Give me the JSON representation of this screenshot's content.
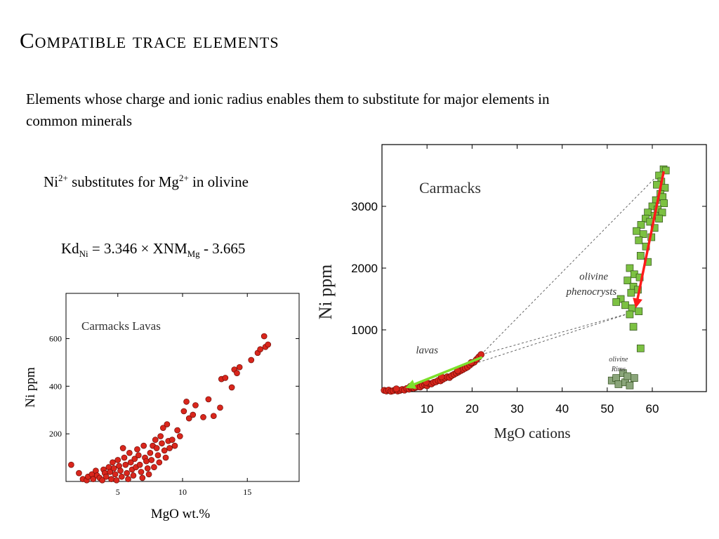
{
  "slide": {
    "title": "Compatible trace elements",
    "intro": "Elements whose charge and ionic radius enables them to substitute for major elements in common minerals",
    "substitution": {
      "ion1": "Ni",
      "ion1_charge": "2+",
      "middle": " substitutes for Mg",
      "ion2_charge": "2+",
      "tail": " in olivine"
    },
    "equation": {
      "lhs": "Kd",
      "lhs_sub": "Ni",
      "mid": " = 3.346 × XNM",
      "mid_sub": "Mg",
      "tail": " - 3.665"
    }
  },
  "chart_data": [
    {
      "type": "scatter",
      "title": "Carmacks Lavas",
      "xlabel": "MgO wt.%",
      "ylabel": "Ni ppm",
      "xlim": [
        1,
        19
      ],
      "ylim": [
        0,
        790
      ],
      "xticks": [
        5,
        10,
        15
      ],
      "yticks": [
        200,
        400,
        600
      ],
      "grid": false,
      "marker": "circle",
      "marker_color": "#d9261c",
      "series": [
        {
          "points": [
            [
              1.4,
              70
            ],
            [
              2.0,
              35
            ],
            [
              2.3,
              10
            ],
            [
              2.6,
              5
            ],
            [
              2.7,
              20
            ],
            [
              3.0,
              30
            ],
            [
              3.1,
              10
            ],
            [
              3.3,
              45
            ],
            [
              3.4,
              25
            ],
            [
              3.6,
              15
            ],
            [
              3.8,
              5
            ],
            [
              3.9,
              50
            ],
            [
              4.0,
              35
            ],
            [
              4.1,
              20
            ],
            [
              4.3,
              60
            ],
            [
              4.4,
              40
            ],
            [
              4.5,
              10
            ],
            [
              4.6,
              80
            ],
            [
              4.7,
              55
            ],
            [
              4.8,
              30
            ],
            [
              4.9,
              5
            ],
            [
              5.0,
              90
            ],
            [
              5.1,
              65
            ],
            [
              5.2,
              45
            ],
            [
              5.3,
              20
            ],
            [
              5.4,
              140
            ],
            [
              5.5,
              100
            ],
            [
              5.6,
              70
            ],
            [
              5.7,
              35
            ],
            [
              5.8,
              10
            ],
            [
              5.9,
              120
            ],
            [
              6.0,
              80
            ],
            [
              6.1,
              50
            ],
            [
              6.2,
              25
            ],
            [
              6.3,
              95
            ],
            [
              6.4,
              60
            ],
            [
              6.5,
              135
            ],
            [
              6.6,
              110
            ],
            [
              6.7,
              70
            ],
            [
              6.8,
              40
            ],
            [
              6.9,
              15
            ],
            [
              7.0,
              150
            ],
            [
              7.1,
              100
            ],
            [
              7.2,
              85
            ],
            [
              7.3,
              55
            ],
            [
              7.4,
              30
            ],
            [
              7.5,
              120
            ],
            [
              7.6,
              90
            ],
            [
              7.7,
              150
            ],
            [
              7.8,
              60
            ],
            [
              7.9,
              175
            ],
            [
              8.0,
              140
            ],
            [
              8.1,
              110
            ],
            [
              8.2,
              80
            ],
            [
              8.3,
              190
            ],
            [
              8.4,
              160
            ],
            [
              8.5,
              225
            ],
            [
              8.6,
              130
            ],
            [
              8.7,
              100
            ],
            [
              8.8,
              240
            ],
            [
              8.9,
              170
            ],
            [
              9.0,
              140
            ],
            [
              9.2,
              175
            ],
            [
              9.4,
              150
            ],
            [
              9.6,
              215
            ],
            [
              9.8,
              190
            ],
            [
              10.1,
              295
            ],
            [
              10.3,
              335
            ],
            [
              10.5,
              265
            ],
            [
              10.8,
              280
            ],
            [
              11.0,
              320
            ],
            [
              11.6,
              270
            ],
            [
              12.0,
              345
            ],
            [
              12.4,
              275
            ],
            [
              12.9,
              310
            ],
            [
              13.0,
              430
            ],
            [
              13.3,
              435
            ],
            [
              13.8,
              395
            ],
            [
              14.0,
              470
            ],
            [
              14.2,
              455
            ],
            [
              14.4,
              480
            ],
            [
              15.3,
              510
            ],
            [
              15.8,
              540
            ],
            [
              16.0,
              555
            ],
            [
              16.3,
              610
            ],
            [
              16.4,
              565
            ],
            [
              16.6,
              575
            ]
          ]
        }
      ]
    },
    {
      "type": "scatter",
      "title": "Carmacks",
      "xlabel": "MgO cations",
      "ylabel": "Ni ppm",
      "xlim": [
        0,
        72
      ],
      "ylim": [
        0,
        4000
      ],
      "xticks": [
        10,
        20,
        30,
        40,
        50,
        60
      ],
      "yticks": [
        1000,
        2000,
        3000
      ],
      "grid": false,
      "series": [
        {
          "name": "lavas",
          "marker": "circle",
          "color": "#d9261c",
          "points": [
            [
              0.5,
              20
            ],
            [
              1.0,
              10
            ],
            [
              1.5,
              25
            ],
            [
              2.0,
              5
            ],
            [
              2.5,
              15
            ],
            [
              3.0,
              30
            ],
            [
              3.5,
              10
            ],
            [
              4.0,
              20
            ],
            [
              4.5,
              35
            ],
            [
              5.0,
              25
            ],
            [
              5.5,
              50
            ],
            [
              6.0,
              40
            ],
            [
              6.5,
              60
            ],
            [
              7.0,
              55
            ],
            [
              7.5,
              70
            ],
            [
              8.0,
              80
            ],
            [
              8.5,
              75
            ],
            [
              9.0,
              100
            ],
            [
              9.5,
              110
            ],
            [
              10.0,
              95
            ],
            [
              10.5,
              130
            ],
            [
              11.0,
              125
            ],
            [
              11.5,
              150
            ],
            [
              12.0,
              160
            ],
            [
              12.5,
              180
            ],
            [
              13.0,
              175
            ],
            [
              13.5,
              200
            ],
            [
              14.0,
              220
            ],
            [
              14.5,
              240
            ],
            [
              15.0,
              230
            ],
            [
              15.5,
              260
            ],
            [
              16.0,
              280
            ],
            [
              16.5,
              300
            ],
            [
              17.0,
              320
            ],
            [
              17.5,
              340
            ],
            [
              18.0,
              360
            ],
            [
              18.5,
              380
            ],
            [
              19.0,
              400
            ],
            [
              19.5,
              430
            ],
            [
              20.0,
              460
            ],
            [
              20.5,
              480
            ],
            [
              21.0,
              520
            ],
            [
              21.5,
              560
            ],
            [
              22.0,
              600
            ],
            [
              3.2,
              45
            ],
            [
              6.3,
              85
            ],
            [
              9.8,
              150
            ],
            [
              13.2,
              240
            ],
            [
              16.8,
              340
            ],
            [
              19.8,
              470
            ]
          ]
        },
        {
          "name": "olivine phenocrysts",
          "marker": "square",
          "color": "#7cc142",
          "points": [
            [
              62.5,
              3600
            ],
            [
              63.0,
              3580
            ],
            [
              61.5,
              3500
            ],
            [
              62.0,
              3400
            ],
            [
              61.0,
              3350
            ],
            [
              62.8,
              3300
            ],
            [
              61.8,
              3200
            ],
            [
              62.3,
              3150
            ],
            [
              60.8,
              3100
            ],
            [
              62.6,
              3050
            ],
            [
              60.0,
              3000
            ],
            [
              61.2,
              2950
            ],
            [
              59.0,
              2900
            ],
            [
              62.2,
              2900
            ],
            [
              60.5,
              2850
            ],
            [
              58.5,
              2800
            ],
            [
              61.5,
              2800
            ],
            [
              59.5,
              2750
            ],
            [
              57.5,
              2700
            ],
            [
              60.5,
              2650
            ],
            [
              56.5,
              2600
            ],
            [
              58.0,
              2550
            ],
            [
              59.8,
              2500
            ],
            [
              57.0,
              2450
            ],
            [
              58.6,
              2350
            ],
            [
              57.4,
              2200
            ],
            [
              59.0,
              2100
            ],
            [
              55.0,
              2000
            ],
            [
              56.0,
              1900
            ],
            [
              57.2,
              1850
            ],
            [
              54.5,
              1800
            ],
            [
              55.8,
              1700
            ],
            [
              56.8,
              1650
            ],
            [
              55.3,
              1600
            ],
            [
              53.0,
              1500
            ],
            [
              52.0,
              1450
            ],
            [
              54.0,
              1400
            ],
            [
              55.5,
              1350
            ],
            [
              57.0,
              1300
            ],
            [
              55.0,
              1250
            ],
            [
              55.8,
              1050
            ],
            [
              57.4,
              700
            ]
          ]
        },
        {
          "name": "olivine Rims",
          "marker": "square",
          "color": "#8aa57a",
          "points": [
            [
              51.0,
              180
            ],
            [
              52.0,
              220
            ],
            [
              52.5,
              120
            ],
            [
              53.5,
              300
            ],
            [
              54.0,
              150
            ],
            [
              55.0,
              100
            ],
            [
              56.0,
              220
            ],
            [
              54.5,
              250
            ]
          ]
        }
      ],
      "annotations": [
        {
          "text": "lavas",
          "x": 10,
          "y": 620
        },
        {
          "text": "olivine",
          "x": 47,
          "y": 1810
        },
        {
          "text": "phenocrysts",
          "x": 46.5,
          "y": 1570
        },
        {
          "text": "olivine",
          "x": 52.5,
          "y": 490
        },
        {
          "text": "Rims",
          "x": 52.5,
          "y": 330
        }
      ],
      "arrows": [
        {
          "color": "#ff1a1a",
          "from": [
            62.5,
            3550
          ],
          "to": [
            56.3,
            1350
          ]
        },
        {
          "color": "#7de02b",
          "from": [
            22,
            550
          ],
          "to": [
            5.2,
            60
          ]
        }
      ],
      "dashed_lines": [
        {
          "from": [
            22,
            600
          ],
          "to": [
            62.5,
            3600
          ]
        },
        {
          "from": [
            22,
            600
          ],
          "to": [
            55.5,
            1280
          ]
        },
        {
          "from": [
            17,
            370
          ],
          "to": [
            55.5,
            1280
          ]
        }
      ]
    }
  ]
}
